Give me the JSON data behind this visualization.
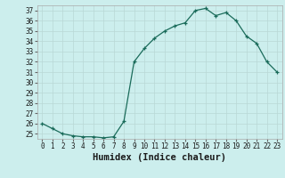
{
  "x": [
    0,
    1,
    2,
    3,
    4,
    5,
    6,
    7,
    8,
    9,
    10,
    11,
    12,
    13,
    14,
    15,
    16,
    17,
    18,
    19,
    20,
    21,
    22,
    23
  ],
  "y": [
    26,
    25.5,
    25,
    24.8,
    24.7,
    24.7,
    24.6,
    24.7,
    26.2,
    32,
    33.3,
    34.3,
    35,
    35.5,
    35.8,
    37.0,
    37.2,
    36.5,
    36.8,
    36.0,
    34.5,
    33.8,
    32.0,
    31.0
  ],
  "line_color": "#1a6b5a",
  "bg_color": "#cceeed",
  "grid_color": "#b8d8d6",
  "xlabel": "Humidex (Indice chaleur)",
  "ylim": [
    24.5,
    37.5
  ],
  "yticks": [
    25,
    26,
    27,
    28,
    29,
    30,
    31,
    32,
    33,
    34,
    35,
    36,
    37
  ],
  "xlim": [
    -0.5,
    23.5
  ],
  "xticks": [
    0,
    1,
    2,
    3,
    4,
    5,
    6,
    7,
    8,
    9,
    10,
    11,
    12,
    13,
    14,
    15,
    16,
    17,
    18,
    19,
    20,
    21,
    22,
    23
  ],
  "tick_fontsize": 5.5,
  "xlabel_fontsize": 7.5
}
